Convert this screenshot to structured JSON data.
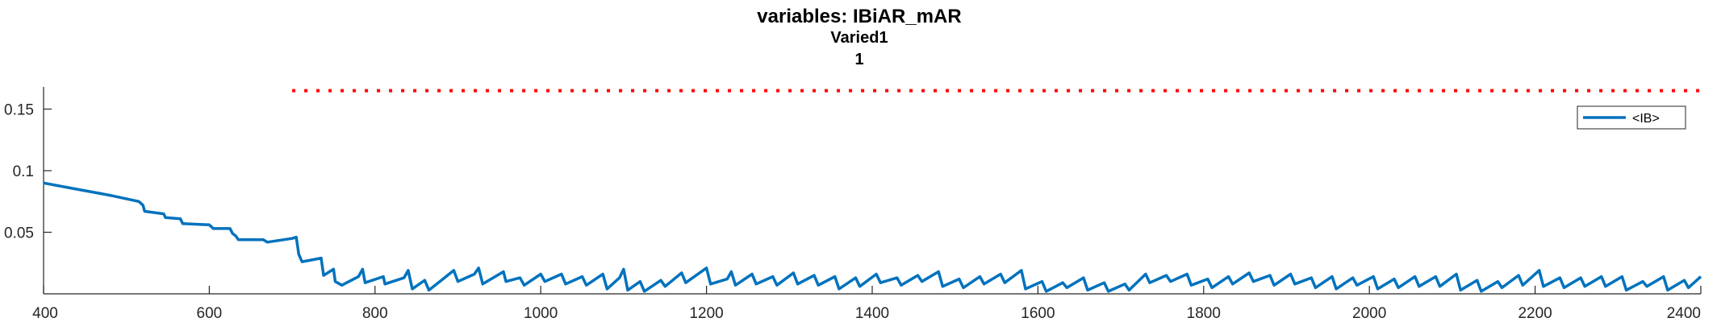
{
  "chart_data": {
    "type": "line",
    "title": "variables: IBiAR_mAR",
    "subtitle_lines": [
      "Varied1",
      "1"
    ],
    "xlabel": "",
    "ylabel": "",
    "xlim": [
      400,
      2400
    ],
    "ylim": [
      0,
      0.168
    ],
    "xticks": [
      400,
      600,
      800,
      1000,
      1200,
      1400,
      1600,
      1800,
      2000,
      2200,
      2400
    ],
    "xtick_labels": [
      "400",
      "600",
      "800",
      "1000",
      "1200",
      "1400",
      "1600",
      "1800",
      "2000",
      "2200",
      "2400"
    ],
    "yticks": [
      0.05,
      0.1,
      0.15
    ],
    "ytick_labels": [
      "0.05",
      "0.1",
      "0.15"
    ],
    "grid": false,
    "legend": {
      "placement": "top-right",
      "entries": [
        "<IB>"
      ]
    },
    "series": [
      {
        "name": "<IB>",
        "color": "#0072BD",
        "style": "solid",
        "points": [
          [
            400,
            0.09
          ],
          [
            440,
            0.085
          ],
          [
            480,
            0.08
          ],
          [
            515,
            0.075
          ],
          [
            520,
            0.072
          ],
          [
            522,
            0.067
          ],
          [
            545,
            0.065
          ],
          [
            547,
            0.062
          ],
          [
            565,
            0.061
          ],
          [
            568,
            0.057
          ],
          [
            600,
            0.056
          ],
          [
            605,
            0.053
          ],
          [
            625,
            0.053
          ],
          [
            628,
            0.049
          ],
          [
            632,
            0.047
          ],
          [
            635,
            0.044
          ],
          [
            665,
            0.044
          ],
          [
            670,
            0.042
          ],
          [
            700,
            0.045
          ],
          [
            705,
            0.046
          ],
          [
            708,
            0.032
          ],
          [
            712,
            0.026
          ],
          [
            735,
            0.029
          ],
          [
            738,
            0.015
          ],
          [
            750,
            0.02
          ],
          [
            752,
            0.01
          ],
          [
            760,
            0.007
          ],
          [
            780,
            0.014
          ],
          [
            785,
            0.02
          ],
          [
            788,
            0.009
          ],
          [
            810,
            0.014
          ],
          [
            812,
            0.008
          ],
          [
            835,
            0.013
          ],
          [
            840,
            0.019
          ],
          [
            845,
            0.004
          ],
          [
            860,
            0.011
          ],
          [
            865,
            0.003
          ],
          [
            880,
            0.011
          ],
          [
            895,
            0.019
          ],
          [
            900,
            0.01
          ],
          [
            920,
            0.016
          ],
          [
            925,
            0.021
          ],
          [
            930,
            0.008
          ],
          [
            955,
            0.018
          ],
          [
            958,
            0.01
          ],
          [
            975,
            0.013
          ],
          [
            980,
            0.007
          ],
          [
            1000,
            0.016
          ],
          [
            1005,
            0.01
          ],
          [
            1025,
            0.016
          ],
          [
            1030,
            0.008
          ],
          [
            1050,
            0.014
          ],
          [
            1055,
            0.007
          ],
          [
            1075,
            0.016
          ],
          [
            1080,
            0.004
          ],
          [
            1095,
            0.013
          ],
          [
            1100,
            0.02
          ],
          [
            1105,
            0.003
          ],
          [
            1120,
            0.01
          ],
          [
            1125,
            0.002
          ],
          [
            1145,
            0.011
          ],
          [
            1150,
            0.006
          ],
          [
            1170,
            0.017
          ],
          [
            1175,
            0.009
          ],
          [
            1200,
            0.021
          ],
          [
            1205,
            0.008
          ],
          [
            1225,
            0.012
          ],
          [
            1230,
            0.018
          ],
          [
            1235,
            0.007
          ],
          [
            1255,
            0.016
          ],
          [
            1260,
            0.008
          ],
          [
            1280,
            0.014
          ],
          [
            1285,
            0.007
          ],
          [
            1305,
            0.017
          ],
          [
            1310,
            0.008
          ],
          [
            1330,
            0.015
          ],
          [
            1335,
            0.007
          ],
          [
            1355,
            0.014
          ],
          [
            1360,
            0.004
          ],
          [
            1380,
            0.013
          ],
          [
            1385,
            0.006
          ],
          [
            1405,
            0.016
          ],
          [
            1410,
            0.009
          ],
          [
            1430,
            0.013
          ],
          [
            1435,
            0.007
          ],
          [
            1455,
            0.015
          ],
          [
            1460,
            0.01
          ],
          [
            1480,
            0.018
          ],
          [
            1485,
            0.006
          ],
          [
            1505,
            0.012
          ],
          [
            1510,
            0.005
          ],
          [
            1530,
            0.014
          ],
          [
            1535,
            0.008
          ],
          [
            1555,
            0.016
          ],
          [
            1560,
            0.009
          ],
          [
            1580,
            0.019
          ],
          [
            1585,
            0.004
          ],
          [
            1605,
            0.01
          ],
          [
            1610,
            0.002
          ],
          [
            1630,
            0.009
          ],
          [
            1635,
            0.005
          ],
          [
            1655,
            0.013
          ],
          [
            1660,
            0.003
          ],
          [
            1680,
            0.009
          ],
          [
            1685,
            0.002
          ],
          [
            1705,
            0.008
          ],
          [
            1710,
            0.003
          ],
          [
            1730,
            0.016
          ],
          [
            1735,
            0.009
          ],
          [
            1755,
            0.015
          ],
          [
            1760,
            0.01
          ],
          [
            1780,
            0.016
          ],
          [
            1785,
            0.007
          ],
          [
            1805,
            0.012
          ],
          [
            1810,
            0.005
          ],
          [
            1830,
            0.014
          ],
          [
            1835,
            0.008
          ],
          [
            1855,
            0.017
          ],
          [
            1860,
            0.01
          ],
          [
            1880,
            0.015
          ],
          [
            1885,
            0.007
          ],
          [
            1905,
            0.016
          ],
          [
            1910,
            0.008
          ],
          [
            1930,
            0.013
          ],
          [
            1935,
            0.005
          ],
          [
            1955,
            0.014
          ],
          [
            1960,
            0.004
          ],
          [
            1980,
            0.013
          ],
          [
            1985,
            0.007
          ],
          [
            2005,
            0.014
          ],
          [
            2010,
            0.004
          ],
          [
            2030,
            0.012
          ],
          [
            2035,
            0.005
          ],
          [
            2055,
            0.014
          ],
          [
            2060,
            0.006
          ],
          [
            2080,
            0.014
          ],
          [
            2085,
            0.006
          ],
          [
            2105,
            0.016
          ],
          [
            2110,
            0.003
          ],
          [
            2130,
            0.011
          ],
          [
            2135,
            0.002
          ],
          [
            2155,
            0.01
          ],
          [
            2160,
            0.005
          ],
          [
            2180,
            0.015
          ],
          [
            2185,
            0.007
          ],
          [
            2205,
            0.019
          ],
          [
            2210,
            0.006
          ],
          [
            2230,
            0.013
          ],
          [
            2235,
            0.005
          ],
          [
            2255,
            0.013
          ],
          [
            2260,
            0.006
          ],
          [
            2280,
            0.014
          ],
          [
            2285,
            0.006
          ],
          [
            2305,
            0.014
          ],
          [
            2310,
            0.003
          ],
          [
            2330,
            0.01
          ],
          [
            2335,
            0.006
          ],
          [
            2355,
            0.014
          ],
          [
            2360,
            0.003
          ],
          [
            2380,
            0.011
          ],
          [
            2385,
            0.005
          ],
          [
            2400,
            0.014
          ]
        ]
      },
      {
        "color": "#FF0000",
        "style": "dotted",
        "points": [
          [
            700,
            0.165
          ],
          [
            2400,
            0.165
          ]
        ]
      }
    ]
  }
}
